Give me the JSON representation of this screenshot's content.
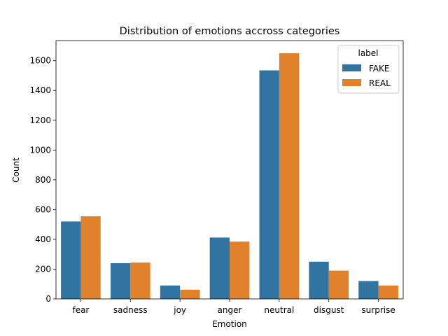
{
  "chart_data": {
    "type": "bar",
    "title": "Distribution of emotions accross categories",
    "xlabel": "Emotion",
    "ylabel": "Count",
    "categories": [
      "fear",
      "sadness",
      "joy",
      "anger",
      "neutral",
      "disgust",
      "surprise"
    ],
    "series": [
      {
        "name": "FAKE",
        "color": "#3274a1",
        "values": [
          520,
          240,
          90,
          412,
          1535,
          250,
          120
        ]
      },
      {
        "name": "REAL",
        "color": "#e1812c",
        "values": [
          555,
          244,
          62,
          385,
          1650,
          190,
          90
        ]
      }
    ],
    "ylim": [
      0,
      1735
    ],
    "yticks": [
      0,
      200,
      400,
      600,
      800,
      1000,
      1200,
      1400,
      1600
    ],
    "grid": false,
    "legend": {
      "title": "label",
      "placement": "top-right"
    }
  }
}
